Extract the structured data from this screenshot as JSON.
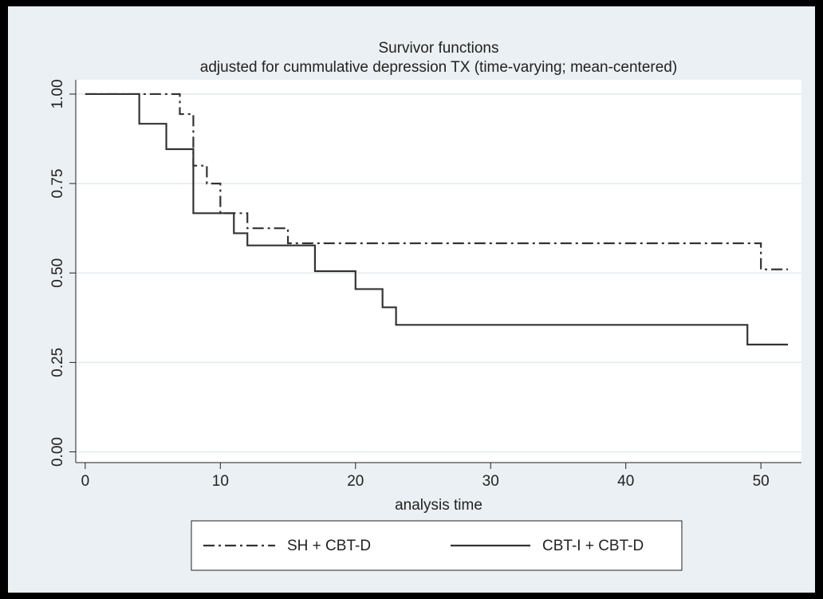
{
  "chart_data": {
    "type": "line",
    "step": "post",
    "title": "Survivor functions",
    "subtitle": "adjusted for cummulative depression TX (time-varying; mean-centered)",
    "x_label": "analysis time",
    "xlim": [
      -0.7,
      53
    ],
    "xticks": [
      0,
      10,
      20,
      30,
      40,
      50
    ],
    "ylim": [
      -0.03,
      1.04
    ],
    "yticks": [
      {
        "value": 0,
        "label": "0.00"
      },
      {
        "value": 0.25,
        "label": "0.25"
      },
      {
        "value": 0.5,
        "label": "0.50"
      },
      {
        "value": 0.75,
        "label": "0.75"
      },
      {
        "value": 1,
        "label": "1.00"
      }
    ],
    "grid": true,
    "legend": "bottom",
    "series": [
      {
        "name": "SH + CBT-D",
        "color": "#333333",
        "style": "dash-dot",
        "x": [
          0,
          7,
          8,
          9,
          10,
          12,
          15,
          50,
          52
        ],
        "values": [
          1,
          0.944,
          0.8,
          0.75,
          0.667,
          0.625,
          0.583,
          0.51,
          0.51
        ]
      },
      {
        "name": "CBT-I + CBT-D",
        "color": "#333333",
        "style": "solid",
        "x": [
          0,
          4,
          6,
          8,
          11,
          12,
          17,
          20,
          22,
          23,
          49,
          52
        ],
        "values": [
          1,
          0.917,
          0.846,
          0.667,
          0.611,
          0.577,
          0.505,
          0.455,
          0.404,
          0.355,
          0.3,
          0.3
        ]
      }
    ]
  }
}
